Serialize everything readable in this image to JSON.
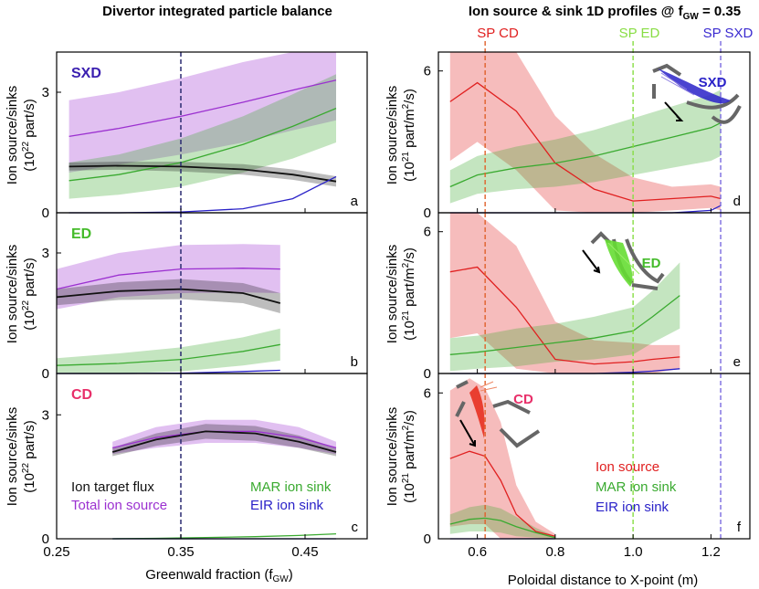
{
  "figure": {
    "left_title": "Divertor integrated particle balance",
    "right_title_main": "Ion source & sink 1D profiles @ f",
    "right_title_sub": "GW",
    "right_title_tail": " = 0.35",
    "left_ylabel_line1": "Ion source/sinks",
    "left_ylabel_line2_pre": "(10",
    "left_ylabel_line2_exp": "22",
    "left_ylabel_line2_post": " part/s)",
    "right_ylabel_line1": "Ion source/sinks",
    "right_ylabel_line2_pre": "(10",
    "right_ylabel_line2_exp": "21",
    "right_ylabel_line2_post": " part/m",
    "right_ylabel_line2_exp2": "2",
    "right_ylabel_line2_tail": "/s)",
    "left_xlabel_main": "Greenwald fraction (f",
    "left_xlabel_sub": "GW",
    "left_xlabel_tail": ")",
    "right_xlabel": "Poloidal distance to X-point (m)",
    "sp_labels": {
      "cd": "SP CD",
      "ed": "SP ED",
      "sxd": "SP SXD"
    }
  },
  "colors": {
    "black": "#111111",
    "purple": "#9b30d0",
    "green": "#3aaa30",
    "blue": "#2a22c8",
    "red": "#e02020",
    "sxd": "#3a1fb0",
    "ed": "#44bb2a",
    "cd": "#e8306a",
    "dash_blue": "#2a2a70",
    "dash_red": "#e0602a",
    "dash_green": "#88dd44",
    "dash_purple": "#7a6ae0"
  },
  "legend_left": {
    "target": "Ion target flux",
    "total": "Total ion source",
    "mar": "MAR ion sink",
    "eir": "EIR ion sink"
  },
  "legend_right": {
    "source": "Ion source",
    "mar": "MAR ion sink",
    "eir": "EIR ion sink"
  },
  "chart_data": [
    {
      "type": "line",
      "panel": "a",
      "label": "SXD",
      "xlim": [
        0.25,
        0.5
      ],
      "ylim": [
        0,
        4
      ],
      "xticks": [
        "0.25",
        "0.35",
        "0.45"
      ],
      "yticks": [
        "0",
        "3"
      ],
      "x": [
        0.26,
        0.3,
        0.35,
        0.4,
        0.44,
        0.475
      ],
      "series": [
        {
          "name": "Total ion source",
          "values": [
            1.9,
            2.1,
            2.4,
            2.75,
            3.05,
            3.3
          ],
          "band": [
            0.9,
            0.9,
            0.95,
            1.0,
            1.0,
            1.0
          ]
        },
        {
          "name": "MAR ion sink",
          "values": [
            0.8,
            0.95,
            1.25,
            1.7,
            2.15,
            2.6
          ],
          "band": [
            0.45,
            0.5,
            0.6,
            0.7,
            0.8,
            0.85
          ]
        },
        {
          "name": "Ion target flux",
          "values": [
            1.15,
            1.17,
            1.15,
            1.08,
            0.95,
            0.78
          ],
          "band": [
            0.1,
            0.1,
            0.12,
            0.13,
            0.13,
            0.13
          ]
        },
        {
          "name": "EIR ion sink",
          "values": [
            0.0,
            0.0,
            0.02,
            0.1,
            0.35,
            0.9
          ],
          "band": [
            0,
            0,
            0,
            0,
            0,
            0
          ]
        }
      ]
    },
    {
      "type": "line",
      "panel": "b",
      "label": "ED",
      "xlim": [
        0.25,
        0.5
      ],
      "ylim": [
        0,
        4
      ],
      "xticks": [
        "0.25",
        "0.35",
        "0.45"
      ],
      "yticks": [
        "0",
        "3"
      ],
      "x": [
        0.25,
        0.3,
        0.35,
        0.4,
        0.43
      ],
      "series": [
        {
          "name": "Total ion source",
          "values": [
            2.1,
            2.45,
            2.6,
            2.62,
            2.6
          ],
          "band": [
            0.5,
            0.55,
            0.6,
            0.6,
            0.6
          ]
        },
        {
          "name": "MAR ion sink",
          "values": [
            0.2,
            0.25,
            0.35,
            0.55,
            0.72
          ],
          "band": [
            0.18,
            0.25,
            0.3,
            0.35,
            0.4
          ]
        },
        {
          "name": "Ion target flux",
          "values": [
            1.9,
            2.05,
            2.1,
            2.0,
            1.75
          ],
          "band": [
            0.2,
            0.22,
            0.25,
            0.25,
            0.25
          ]
        },
        {
          "name": "EIR ion sink",
          "values": [
            0.0,
            0.0,
            0.01,
            0.05,
            0.08
          ],
          "band": [
            0,
            0,
            0,
            0,
            0
          ]
        }
      ]
    },
    {
      "type": "line",
      "panel": "c",
      "label": "CD",
      "xlim": [
        0.25,
        0.5
      ],
      "ylim": [
        0,
        4
      ],
      "xticks": [
        "0.25",
        "0.35",
        "0.45"
      ],
      "yticks": [
        "0",
        "3"
      ],
      "x": [
        0.295,
        0.33,
        0.37,
        0.41,
        0.445,
        0.475
      ],
      "series": [
        {
          "name": "Total ion source",
          "values": [
            2.2,
            2.45,
            2.6,
            2.6,
            2.45,
            2.2
          ],
          "band": [
            0.15,
            0.25,
            0.28,
            0.28,
            0.25,
            0.15
          ]
        },
        {
          "name": "Ion target flux",
          "values": [
            2.1,
            2.4,
            2.6,
            2.55,
            2.35,
            2.1
          ],
          "band": [
            0.1,
            0.15,
            0.18,
            0.18,
            0.15,
            0.1
          ]
        },
        {
          "name": "MAR ion sink",
          "values": [
            0.0,
            0.01,
            0.03,
            0.05,
            0.08,
            0.12
          ],
          "band": [
            0,
            0,
            0,
            0,
            0,
            0
          ]
        },
        {
          "name": "EIR ion sink",
          "values": [
            0.0,
            0.0,
            0.0,
            0.0,
            0.0,
            0.0
          ],
          "band": [
            0,
            0,
            0,
            0,
            0,
            0
          ]
        }
      ]
    },
    {
      "type": "line",
      "panel": "d",
      "label": "SXD",
      "xlim": [
        0.5,
        1.3
      ],
      "ylim": [
        0,
        6.8
      ],
      "xticks": [
        "0.6",
        "0.8",
        "1.0",
        "1.2"
      ],
      "yticks": [
        "0",
        "6"
      ],
      "x": [
        0.53,
        0.6,
        0.7,
        0.8,
        0.9,
        1.0,
        1.1,
        1.2,
        1.225
      ],
      "series": [
        {
          "name": "Ion source",
          "values": [
            4.7,
            5.5,
            4.3,
            2.1,
            1.0,
            0.5,
            0.6,
            0.7,
            0.6
          ],
          "band": [
            2.5,
            2.5,
            2.5,
            2.0,
            1.5,
            1.0,
            0.5,
            0.5,
            0.5
          ]
        },
        {
          "name": "MAR ion sink",
          "values": [
            1.1,
            1.6,
            1.9,
            2.1,
            2.4,
            2.8,
            3.2,
            3.6,
            3.8
          ],
          "band": [
            0.7,
            0.8,
            0.9,
            1.0,
            1.1,
            1.2,
            1.3,
            1.4,
            1.4
          ]
        },
        {
          "name": "EIR ion sink",
          "values": [
            0.0,
            0.0,
            0.0,
            0.0,
            0.0,
            0.0,
            0.0,
            0.1,
            0.3
          ],
          "band": [
            0,
            0,
            0,
            0,
            0,
            0,
            0,
            0,
            0
          ]
        }
      ]
    },
    {
      "type": "line",
      "panel": "e",
      "label": "ED",
      "xlim": [
        0.5,
        1.3
      ],
      "ylim": [
        0,
        6.8
      ],
      "xticks": [
        "0.6",
        "0.8",
        "1.0",
        "1.2"
      ],
      "yticks": [
        "0",
        "6"
      ],
      "x": [
        0.53,
        0.6,
        0.7,
        0.8,
        0.9,
        1.0,
        1.05,
        1.12
      ],
      "series": [
        {
          "name": "Ion source",
          "values": [
            4.3,
            4.5,
            2.8,
            0.6,
            0.4,
            0.5,
            0.6,
            0.7
          ],
          "band": [
            2.8,
            2.8,
            2.6,
            1.6,
            1.0,
            0.8,
            0.6,
            0.5
          ]
        },
        {
          "name": "MAR ion sink",
          "values": [
            0.8,
            0.9,
            1.1,
            1.3,
            1.5,
            1.8,
            2.4,
            3.3
          ],
          "band": [
            0.7,
            0.7,
            0.8,
            0.8,
            0.9,
            1.0,
            1.1,
            1.4
          ]
        },
        {
          "name": "EIR ion sink",
          "values": [
            0.0,
            0.0,
            0.0,
            0.0,
            0.0,
            0.05,
            0.1,
            0.2
          ],
          "band": [
            0,
            0,
            0,
            0,
            0,
            0,
            0,
            0
          ]
        }
      ]
    },
    {
      "type": "line",
      "panel": "f",
      "label": "CD",
      "xlim": [
        0.5,
        1.3
      ],
      "ylim": [
        0,
        6.8
      ],
      "xticks": [
        "0.6",
        "0.8",
        "1.0",
        "1.2"
      ],
      "yticks": [
        "0",
        "6"
      ],
      "x": [
        0.53,
        0.58,
        0.62,
        0.66,
        0.7,
        0.75,
        0.8
      ],
      "series": [
        {
          "name": "Ion source",
          "values": [
            3.3,
            3.6,
            3.4,
            2.4,
            1.0,
            0.3,
            0.1
          ],
          "band": [
            2.8,
            3.0,
            2.8,
            2.4,
            1.2,
            0.4,
            0.1
          ]
        },
        {
          "name": "MAR ion sink",
          "values": [
            0.6,
            0.8,
            0.85,
            0.75,
            0.5,
            0.25,
            0.05
          ],
          "band": [
            0.4,
            0.5,
            0.55,
            0.5,
            0.4,
            0.2,
            0.05
          ]
        },
        {
          "name": "EIR ion sink",
          "values": [
            0.0,
            0.0,
            0.0,
            0.0,
            0.0,
            0.0,
            0.0
          ],
          "band": [
            0,
            0,
            0,
            0,
            0,
            0,
            0
          ]
        }
      ]
    }
  ],
  "markers": {
    "left_dashed_x": 0.35,
    "sp_cd_x": 0.62,
    "sp_ed_x": 1.0,
    "sp_sxd_x": 1.225
  }
}
